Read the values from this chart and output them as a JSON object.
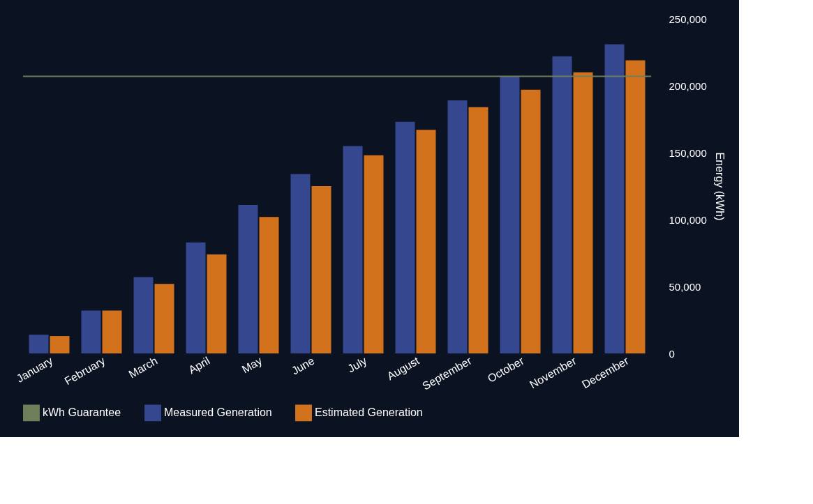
{
  "chart_data": {
    "type": "bar",
    "ylabel": "Energy (kWh)",
    "categories": [
      "January",
      "February",
      "March",
      "April",
      "May",
      "June",
      "July",
      "August",
      "September",
      "October",
      "November",
      "December"
    ],
    "series": [
      {
        "name": "Measured Generation",
        "color": "#34478f",
        "values": [
          14000,
          32000,
          57000,
          83000,
          111000,
          134000,
          155000,
          173000,
          189000,
          207000,
          222000,
          231000
        ]
      },
      {
        "name": "Estimated Generation",
        "color": "#d2721c",
        "values": [
          13000,
          32000,
          52000,
          74000,
          102000,
          125000,
          148000,
          167000,
          184000,
          197000,
          210000,
          219000
        ]
      }
    ],
    "ylim": [
      0,
      250000
    ],
    "yticks": [
      {
        "value": 0,
        "label": "0"
      },
      {
        "value": 50000,
        "label": "50,000"
      },
      {
        "value": 100000,
        "label": "100,000"
      },
      {
        "value": 150000,
        "label": "150,000"
      },
      {
        "value": 200000,
        "label": "200,000"
      },
      {
        "value": 250000,
        "label": "250,000"
      }
    ],
    "ref_lines": [
      {
        "axis": "y",
        "value": 207000,
        "label": "kWh Guarantee",
        "color": "#6f7f5a"
      }
    ],
    "grid": false,
    "legend": "bottom"
  }
}
